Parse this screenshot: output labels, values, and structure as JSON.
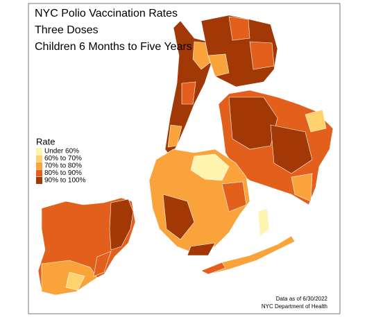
{
  "title_lines": [
    "NYC Polio Vaccination Rates",
    "Three Doses",
    "Children 6 Months to Five Years"
  ],
  "legend": {
    "title": "Rate",
    "items": [
      {
        "label": "Under 60%",
        "color": "#fff3b0"
      },
      {
        "label": "60% to 70%",
        "color": "#fed36e"
      },
      {
        "label": "70% to 80%",
        "color": "#f9a33a"
      },
      {
        "label": "80% to 90%",
        "color": "#e2601c"
      },
      {
        "label": "90% to 100%",
        "color": "#a33807"
      }
    ]
  },
  "notes": [
    "Data as of 6/30/2022",
    "NYC Department of Health"
  ]
}
